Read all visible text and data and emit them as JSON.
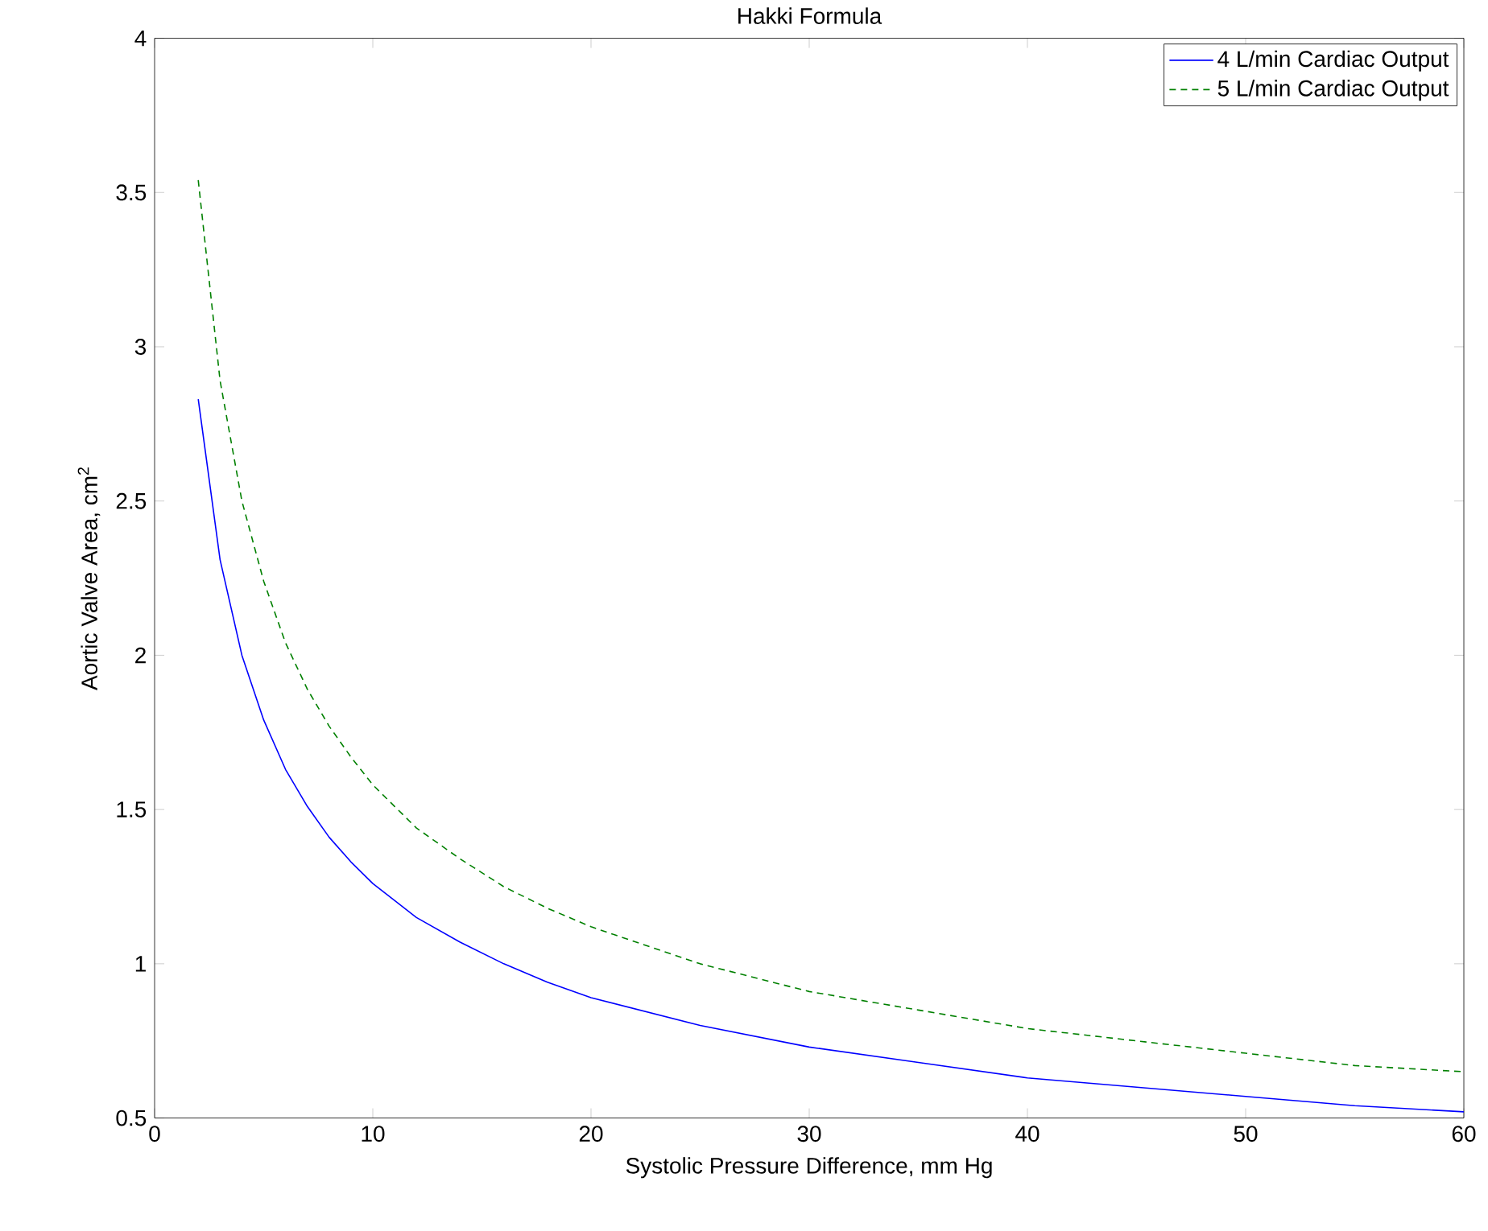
{
  "chart_data": {
    "type": "line",
    "title": "Hakki Formula",
    "xlabel": "Systolic Pressure Difference, mm Hg",
    "ylabel": "Aortic Valve Area, cm$^{2}$",
    "x": [
      2,
      3,
      4,
      5,
      6,
      7,
      8,
      9,
      10,
      12,
      14,
      16,
      18,
      20,
      25,
      30,
      35,
      40,
      45,
      50,
      55,
      60
    ],
    "series": [
      {
        "name": "4 L/min Cardiac Output",
        "color": "#0000ff",
        "line_style": "solid",
        "values": [
          2.83,
          2.31,
          2.0,
          1.79,
          1.63,
          1.51,
          1.41,
          1.33,
          1.26,
          1.15,
          1.07,
          1.0,
          0.94,
          0.89,
          0.8,
          0.73,
          0.68,
          0.63,
          0.6,
          0.57,
          0.54,
          0.52
        ]
      },
      {
        "name": "5 L/min Cardiac Output",
        "color": "#008000",
        "line_style": "dashed",
        "values": [
          3.54,
          2.89,
          2.5,
          2.24,
          2.04,
          1.89,
          1.77,
          1.67,
          1.58,
          1.44,
          1.34,
          1.25,
          1.18,
          1.12,
          1.0,
          0.91,
          0.85,
          0.79,
          0.75,
          0.71,
          0.67,
          0.65
        ]
      }
    ],
    "xlim": [
      0,
      60
    ],
    "xticks": [
      0,
      10,
      20,
      30,
      40,
      50,
      60
    ],
    "ylim": [
      0.5,
      4
    ],
    "yticks": [
      0.5,
      1,
      1.5,
      2,
      2.5,
      3,
      3.5,
      4
    ],
    "legend": "top right",
    "grid": false,
    "marker": "none"
  }
}
